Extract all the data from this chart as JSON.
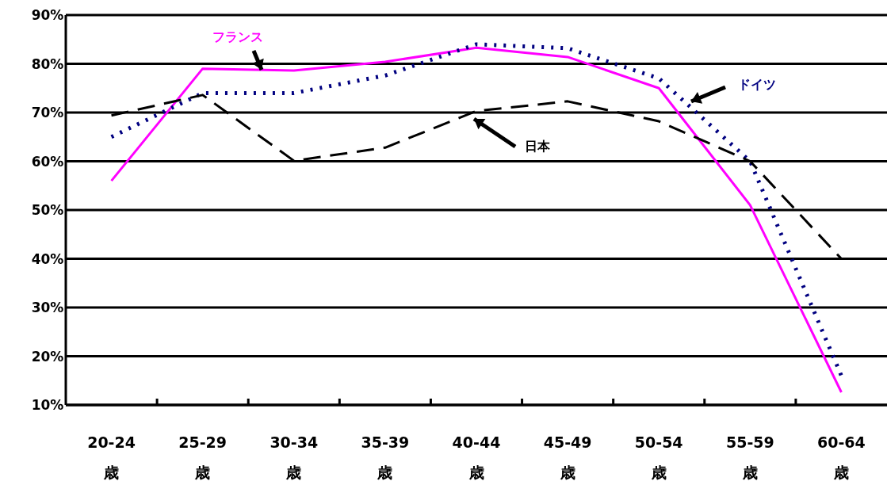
{
  "chart_data": {
    "type": "line",
    "categories": [
      "20-24\n歳",
      "25-29\n歳",
      "30-34\n歳",
      "35-39\n歳",
      "40-44\n歳",
      "45-49\n歳",
      "50-54\n歳",
      "55-59\n歳",
      "60-64\n歳"
    ],
    "series": [
      {
        "name": "フランス",
        "color": "#ff00ff",
        "line_style": "solid",
        "values": [
          56,
          79,
          78.6,
          80.4,
          83.3,
          81.4,
          75,
          51,
          12.6
        ]
      },
      {
        "name": "ドイツ",
        "color": "#000080",
        "line_style": "dotted",
        "values": [
          65,
          74,
          74,
          77.6,
          84,
          83.2,
          77,
          60,
          16
        ]
      },
      {
        "name": "日本",
        "color": "#000000",
        "line_style": "dashed",
        "values": [
          69.4,
          73.6,
          60.1,
          62.8,
          70.3,
          72.3,
          68.2,
          60,
          40
        ]
      }
    ],
    "ylim": [
      10,
      90
    ],
    "yticks": [
      {
        "value": 10,
        "label": "10%"
      },
      {
        "value": 20,
        "label": "20%"
      },
      {
        "value": 30,
        "label": "30%"
      },
      {
        "value": 40,
        "label": "40%"
      },
      {
        "value": 50,
        "label": "50%"
      },
      {
        "value": 60,
        "label": "60%"
      },
      {
        "value": 70,
        "label": "70%"
      },
      {
        "value": 80,
        "label": "80%"
      },
      {
        "value": 90,
        "label": "90%"
      }
    ],
    "grid": "y",
    "legend": false
  }
}
